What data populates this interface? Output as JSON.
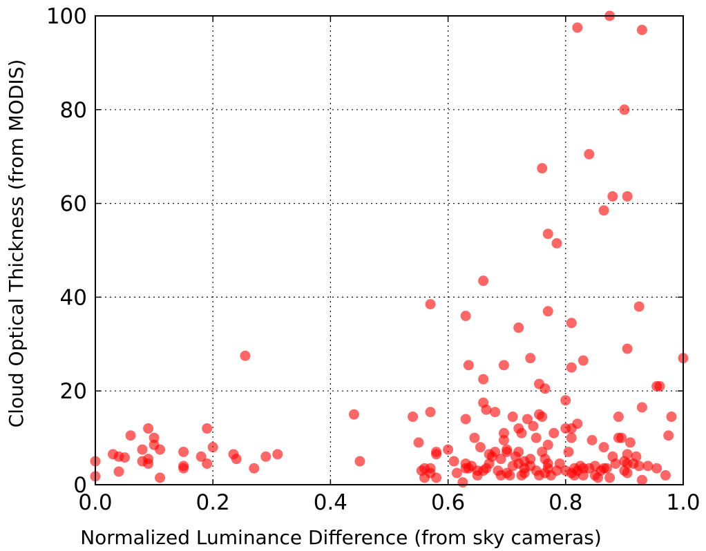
{
  "chart_data": {
    "type": "scatter",
    "xlabel": "Normalized Luminance Difference (from sky cameras)",
    "ylabel": "Cloud Optical Thickness (from MODIS)",
    "xlim": [
      0.0,
      1.0
    ],
    "ylim": [
      0,
      100
    ],
    "xticks": [
      "0.0",
      "0.2",
      "0.4",
      "0.6",
      "0.8",
      "1.0"
    ],
    "yticks": [
      "0",
      "20",
      "40",
      "60",
      "80",
      "100"
    ],
    "grid": true,
    "point_color": "#ff0000",
    "series": [
      {
        "x": [
          0.0,
          0.0,
          0.03,
          0.04,
          0.04,
          0.05,
          0.06,
          0.08,
          0.08,
          0.09,
          0.09,
          0.09,
          0.1,
          0.1,
          0.11,
          0.11,
          0.15,
          0.15,
          0.15,
          0.18,
          0.19,
          0.19,
          0.2,
          0.235,
          0.24,
          0.255,
          0.27,
          0.29,
          0.31,
          0.44,
          0.45,
          0.54,
          0.55,
          0.555,
          0.56,
          0.56,
          0.57,
          0.57,
          0.57,
          0.58,
          0.58,
          0.58,
          0.6,
          0.61,
          0.615,
          0.625,
          0.63,
          0.63,
          0.63,
          0.635,
          0.64,
          0.645,
          0.65,
          0.65,
          0.655,
          0.66,
          0.66,
          0.665,
          0.67,
          0.67,
          0.675,
          0.68,
          0.68,
          0.685,
          0.69,
          0.69,
          0.695,
          0.695,
          0.7,
          0.7,
          0.7,
          0.705,
          0.71,
          0.71,
          0.715,
          0.72,
          0.72,
          0.72,
          0.725,
          0.725,
          0.73,
          0.73,
          0.73,
          0.735,
          0.74,
          0.74,
          0.745,
          0.75,
          0.75,
          0.755,
          0.755,
          0.76,
          0.76,
          0.765,
          0.765,
          0.77,
          0.77,
          0.77,
          0.775,
          0.78,
          0.785,
          0.79,
          0.8,
          0.8,
          0.805,
          0.81,
          0.81,
          0.815,
          0.815,
          0.82,
          0.825,
          0.83,
          0.83,
          0.84,
          0.845,
          0.85,
          0.85,
          0.855,
          0.86,
          0.865,
          0.865,
          0.87,
          0.875,
          0.88,
          0.885,
          0.89,
          0.895,
          0.9,
          0.9,
          0.905,
          0.905,
          0.905,
          0.91,
          0.915,
          0.92,
          0.925,
          0.93,
          0.94,
          0.955,
          0.96,
          0.97,
          0.975,
          0.98,
          1.0,
          0.76,
          0.77,
          0.785,
          0.82,
          0.84,
          0.865,
          0.88,
          0.875,
          0.9,
          0.905,
          0.93,
          0.66,
          0.57,
          0.63,
          0.77,
          0.81,
          0.925,
          0.905,
          0.635,
          0.665,
          0.695,
          0.74,
          0.81,
          0.83,
          0.955,
          0.93,
          0.72,
          0.765,
          0.755,
          0.8,
          0.81,
          0.89,
          0.82,
          0.66
        ],
        "y": [
          1.8,
          5.0,
          6.5,
          2.8,
          6.0,
          5.8,
          10.5,
          7.5,
          5.0,
          12.0,
          5.5,
          4.5,
          10.0,
          8.5,
          1.5,
          7.5,
          3.5,
          7.0,
          4.0,
          6.0,
          4.5,
          12.0,
          8.0,
          6.5,
          5.5,
          27.5,
          3.5,
          6.0,
          6.5,
          15.0,
          5.0,
          14.5,
          9.0,
          3.0,
          1.5,
          3.5,
          2.5,
          15.5,
          3.5,
          7.0,
          6.5,
          1.5,
          7.5,
          5.0,
          2.5,
          0.5,
          4.5,
          3.5,
          14.0,
          3.5,
          4.0,
          10.0,
          2.0,
          3.0,
          8.0,
          3.0,
          17.5,
          3.5,
          4.5,
          6.5,
          6.0,
          7.0,
          15.5,
          3.0,
          5.5,
          2.0,
          11.0,
          9.5,
          7.0,
          7.5,
          2.5,
          2.0,
          14.5,
          4.0,
          6.0,
          4.5,
          7.0,
          12.0,
          11.0,
          2.0,
          5.0,
          3.5,
          2.5,
          14.0,
          4.0,
          5.5,
          12.5,
          10.0,
          3.0,
          15.0,
          2.0,
          14.5,
          7.0,
          2.5,
          5.5,
          4.5,
          8.5,
          3.5,
          2.0,
          11.0,
          3.0,
          4.5,
          3.0,
          12.0,
          7.0,
          2.5,
          10.0,
          2.0,
          3.5,
          3.0,
          4.0,
          2.0,
          3.5,
          3.5,
          9.5,
          4.0,
          2.0,
          1.5,
          3.0,
          3.5,
          8.0,
          3.5,
          1.5,
          6.0,
          4.5,
          14.5,
          10.0,
          5.0,
          3.0,
          2.5,
          6.5,
          4.5,
          9.0,
          4.5,
          6.0,
          4.0,
          1.0,
          4.0,
          3.5,
          21.0,
          2.0,
          10.5,
          14.5,
          27.0,
          67.5,
          53.5,
          51.5,
          97.5,
          70.5,
          58.5,
          61.5,
          100.0,
          80.0,
          61.5,
          97.0,
          43.5,
          38.5,
          36.0,
          37.0,
          34.5,
          38.0,
          29.0,
          25.5,
          16.0,
          25.5,
          27.0,
          25.0,
          26.5,
          21.0,
          16.5,
          33.5,
          20.5,
          21.5,
          18.0,
          12.0,
          10.0,
          13.0,
          22.5
        ]
      }
    ]
  }
}
